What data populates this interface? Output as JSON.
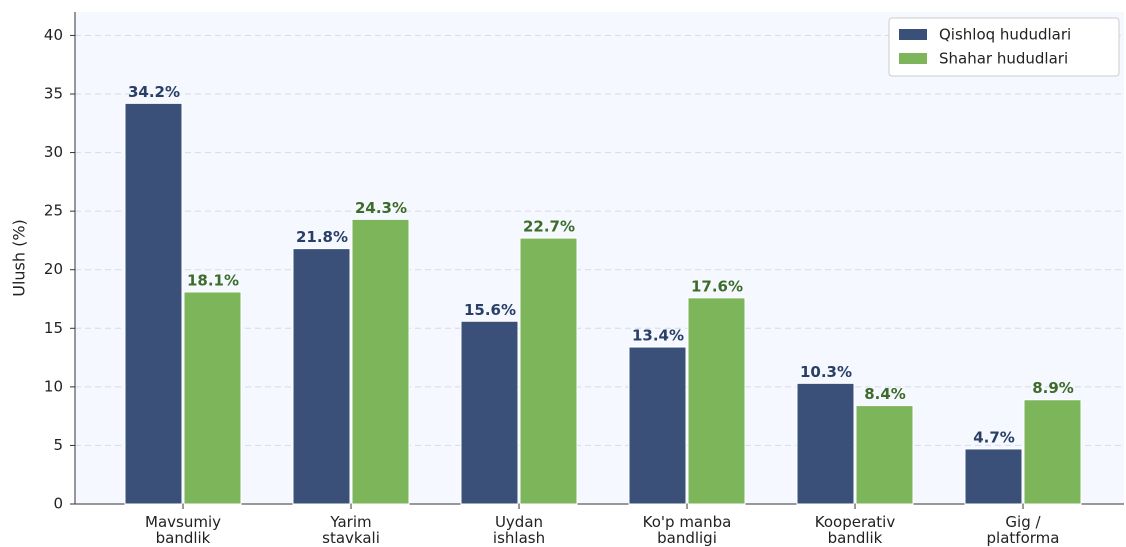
{
  "chart_data": {
    "type": "bar",
    "y_label": "Ulush (%)",
    "categories": [
      "Mavsumiy\nbandlik",
      "Yarim\nstavkali",
      "Uydan\nishlash",
      "Ko'p manba\nbandligi",
      "Kooperativ\nbandlik",
      "Gig /\nplatforma"
    ],
    "series": [
      {
        "name": "Qishloq hududlari",
        "color": "#3a5078",
        "label_color": "#2a3f66",
        "values": [
          34.2,
          21.8,
          15.6,
          13.4,
          10.3,
          4.7
        ],
        "value_labels": [
          "34.2%",
          "21.8%",
          "15.6%",
          "13.4%",
          "10.3%",
          "4.7%"
        ]
      },
      {
        "name": "Shahar hududlari",
        "color": "#7db65a",
        "label_color": "#3d6b2a",
        "values": [
          18.1,
          24.3,
          22.7,
          17.6,
          8.4,
          8.9
        ],
        "value_labels": [
          "18.1%",
          "24.3%",
          "22.7%",
          "17.6%",
          "8.4%",
          "8.9%"
        ]
      }
    ],
    "ylim": [
      0,
      42
    ],
    "yticks": [
      0,
      5,
      10,
      15,
      20,
      25,
      30,
      35,
      40
    ],
    "grid": true,
    "legend": "upper right"
  }
}
